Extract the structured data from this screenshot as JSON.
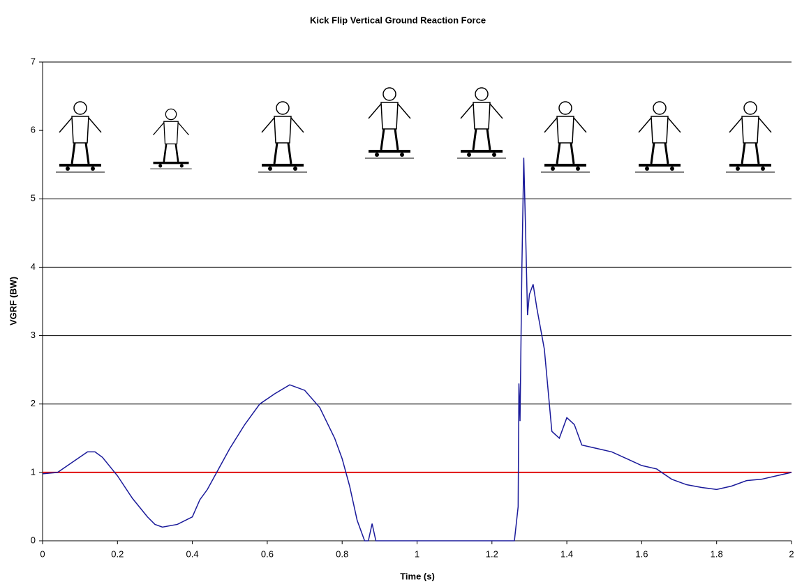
{
  "chart_data": {
    "type": "line",
    "title": "Kick Flip Vertical Ground Reaction Force",
    "x_label": "Time (s)",
    "y_label": "VGRF (BW)",
    "xlim": [
      0,
      2
    ],
    "ylim": [
      0,
      7
    ],
    "xticks": [
      0,
      0.2,
      0.4,
      0.6,
      0.8,
      1,
      1.2,
      1.4,
      1.6,
      1.8,
      2
    ],
    "yticks": [
      0,
      1,
      2,
      3,
      4,
      5,
      6,
      7
    ],
    "grid": true,
    "hlines": [
      {
        "value": 1,
        "color": "#e01010"
      }
    ],
    "series": [
      {
        "color": "#1a1a9a",
        "x": [
          0,
          0.04,
          0.08,
          0.12,
          0.14,
          0.16,
          0.2,
          0.24,
          0.28,
          0.3,
          0.32,
          0.36,
          0.4,
          0.42,
          0.44,
          0.46,
          0.5,
          0.54,
          0.58,
          0.62,
          0.66,
          0.7,
          0.74,
          0.78,
          0.8,
          0.82,
          0.84,
          0.86,
          0.87,
          0.88,
          0.89,
          0.9,
          1.0,
          1.1,
          1.2,
          1.26,
          1.27,
          1.272,
          1.275,
          1.28,
          1.285,
          1.29,
          1.295,
          1.3,
          1.31,
          1.32,
          1.34,
          1.36,
          1.38,
          1.4,
          1.42,
          1.44,
          1.48,
          1.52,
          1.56,
          1.6,
          1.64,
          1.68,
          1.72,
          1.76,
          1.8,
          1.84,
          1.88,
          1.92,
          1.96,
          2.0
        ],
        "values": [
          0.98,
          1.0,
          1.15,
          1.3,
          1.3,
          1.22,
          0.95,
          0.62,
          0.35,
          0.24,
          0.2,
          0.24,
          0.35,
          0.6,
          0.75,
          0.95,
          1.35,
          1.7,
          2.0,
          2.15,
          2.28,
          2.2,
          1.95,
          1.5,
          1.2,
          0.8,
          0.3,
          0,
          0,
          0.25,
          0,
          0,
          0,
          0,
          0,
          0,
          0.5,
          2.3,
          1.75,
          4.0,
          5.6,
          4.5,
          3.3,
          3.6,
          3.75,
          3.4,
          2.8,
          1.6,
          1.5,
          1.8,
          1.7,
          1.4,
          1.35,
          1.3,
          1.2,
          1.1,
          1.05,
          0.9,
          0.82,
          0.78,
          0.75,
          0.8,
          0.88,
          0.9,
          0.95,
          1.0
        ]
      }
    ]
  }
}
